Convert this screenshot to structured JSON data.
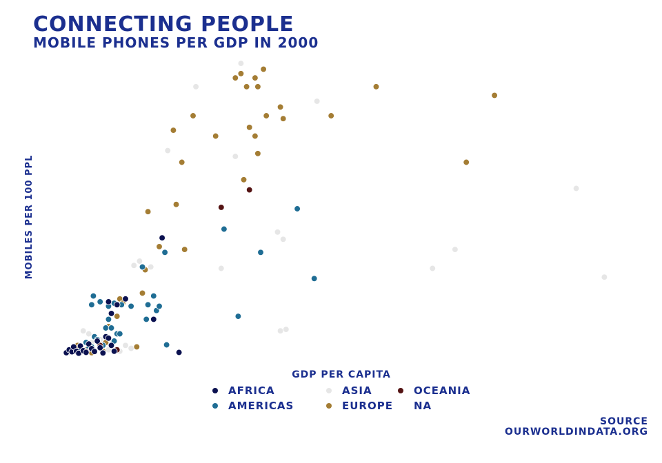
{
  "chart_data": {
    "type": "scatter",
    "title": "CONNECTING PEOPLE",
    "subtitle": "MOBILE PHONES PER GDP IN 2000",
    "xlabel": "GDP PER CAPITA",
    "ylabel": "MOBILES PER 100 PPL",
    "xlim": [
      0,
      100
    ],
    "ylim": [
      0,
      100
    ],
    "grid": false,
    "legend_position": "bottom",
    "legend_title": "",
    "source": "SOURCE\nOURWORLDINDATA.ORG",
    "series": [
      {
        "name": "AFRICA",
        "color": "#0b1150",
        "points": [
          [
            1.0,
            0.5
          ],
          [
            1.5,
            1.5
          ],
          [
            2.0,
            0.8
          ],
          [
            2.3,
            2.5
          ],
          [
            2.8,
            1.0
          ],
          [
            3.2,
            0.3
          ],
          [
            3.5,
            2.8
          ],
          [
            4.0,
            1.2
          ],
          [
            4.5,
            0.6
          ],
          [
            5.0,
            3.5
          ],
          [
            5.5,
            1.9
          ],
          [
            6.0,
            0.9
          ],
          [
            6.5,
            4.5
          ],
          [
            7.0,
            2.2
          ],
          [
            7.5,
            0.4
          ],
          [
            8.0,
            6.0
          ],
          [
            8.5,
            5.5
          ],
          [
            9.0,
            3.0
          ],
          [
            9.5,
            1.0
          ],
          [
            8.5,
            18.0
          ],
          [
            9.0,
            14.0
          ],
          [
            10.0,
            17.0
          ],
          [
            11.5,
            19.0
          ],
          [
            16.5,
            12.0
          ],
          [
            18.0,
            40.0
          ],
          [
            21.0,
            0.6
          ]
        ]
      },
      {
        "name": "AMERICAS",
        "color": "#1f6d94",
        "points": [
          [
            3.5,
            1.0
          ],
          [
            4.5,
            4.0
          ],
          [
            5.0,
            2.0
          ],
          [
            5.5,
            2.5
          ],
          [
            6.0,
            6.0
          ],
          [
            6.5,
            5.0
          ],
          [
            7.5,
            3.0
          ],
          [
            8.0,
            9.0
          ],
          [
            8.5,
            12.0
          ],
          [
            9.5,
            4.5
          ],
          [
            10.0,
            7.0
          ],
          [
            5.5,
            17.0
          ],
          [
            5.8,
            20.0
          ],
          [
            7.0,
            18.0
          ],
          [
            8.5,
            16.5
          ],
          [
            9.5,
            17.5
          ],
          [
            9.0,
            9.0
          ],
          [
            10.5,
            7.0
          ],
          [
            10.8,
            17.0
          ],
          [
            12.5,
            16.5
          ],
          [
            14.5,
            30.0
          ],
          [
            15.2,
            12.0
          ],
          [
            15.5,
            17.0
          ],
          [
            16.5,
            20.0
          ],
          [
            17.0,
            15.0
          ],
          [
            17.5,
            16.5
          ],
          [
            18.5,
            35.0
          ],
          [
            18.8,
            3.2
          ],
          [
            29.0,
            43.0
          ],
          [
            31.5,
            13.0
          ],
          [
            35.5,
            35.0
          ],
          [
            42.0,
            50.0
          ],
          [
            45.0,
            26.0
          ]
        ]
      },
      {
        "name": "ASIA",
        "color": "#e6e6e6",
        "points": [
          [
            1.5,
            0.5
          ],
          [
            2.5,
            1.5
          ],
          [
            3.5,
            2.5
          ],
          [
            4.0,
            8.0
          ],
          [
            5.0,
            7.0
          ],
          [
            5.5,
            4.0
          ],
          [
            7.0,
            5.0
          ],
          [
            8.5,
            1.5
          ],
          [
            10.5,
            1.0
          ],
          [
            11.5,
            3.0
          ],
          [
            12.5,
            2.0
          ],
          [
            13.0,
            30.5
          ],
          [
            14.0,
            32.0
          ],
          [
            15.0,
            29.0
          ],
          [
            16.0,
            30.0
          ],
          [
            28.5,
            29.5
          ],
          [
            19.0,
            70.0
          ],
          [
            24.0,
            92.0
          ],
          [
            31.0,
            68.0
          ],
          [
            32.0,
            100.0
          ],
          [
            38.5,
            42.0
          ],
          [
            39.0,
            8.0
          ],
          [
            39.5,
            39.5
          ],
          [
            40.0,
            8.5
          ],
          [
            45.5,
            87.0
          ],
          [
            66.0,
            29.5
          ],
          [
            70.0,
            36.0
          ],
          [
            91.5,
            57.0
          ],
          [
            96.5,
            26.5
          ]
        ]
      },
      {
        "name": "EUROPE",
        "color": "#a47d34",
        "points": [
          [
            3.0,
            3.0
          ],
          [
            4.5,
            1.5
          ],
          [
            5.0,
            3.5
          ],
          [
            5.5,
            0.5
          ],
          [
            6.5,
            5.0
          ],
          [
            7.5,
            1.0
          ],
          [
            8.0,
            4.0
          ],
          [
            8.5,
            9.5
          ],
          [
            10.0,
            13.0
          ],
          [
            10.5,
            19.0
          ],
          [
            11.0,
            17.5
          ],
          [
            13.5,
            2.5
          ],
          [
            14.5,
            21.0
          ],
          [
            15.0,
            29.0
          ],
          [
            15.5,
            49.0
          ],
          [
            17.5,
            37.0
          ],
          [
            20.0,
            77.0
          ],
          [
            20.5,
            51.5
          ],
          [
            21.5,
            66.0
          ],
          [
            22.0,
            36.0
          ],
          [
            23.5,
            82.0
          ],
          [
            27.5,
            75.0
          ],
          [
            31.0,
            95.0
          ],
          [
            32.0,
            96.5
          ],
          [
            33.0,
            92.0
          ],
          [
            32.5,
            60.0
          ],
          [
            33.5,
            78.0
          ],
          [
            34.5,
            95.0
          ],
          [
            35.0,
            92.0
          ],
          [
            34.5,
            75.0
          ],
          [
            35.0,
            69.0
          ],
          [
            36.0,
            98.0
          ],
          [
            36.5,
            82.0
          ],
          [
            39.0,
            85.0
          ],
          [
            39.5,
            81.0
          ],
          [
            48.0,
            82.0
          ],
          [
            56.0,
            92.0
          ],
          [
            72.0,
            66.0
          ],
          [
            77.0,
            89.0
          ]
        ]
      },
      {
        "name": "OCEANIA",
        "color": "#541313",
        "points": [
          [
            4.5,
            1.0
          ],
          [
            7.0,
            3.0
          ],
          [
            10.0,
            1.5
          ],
          [
            28.5,
            50.5
          ],
          [
            33.5,
            56.5
          ]
        ]
      },
      {
        "name": "NA",
        "color": "",
        "points": []
      }
    ]
  }
}
